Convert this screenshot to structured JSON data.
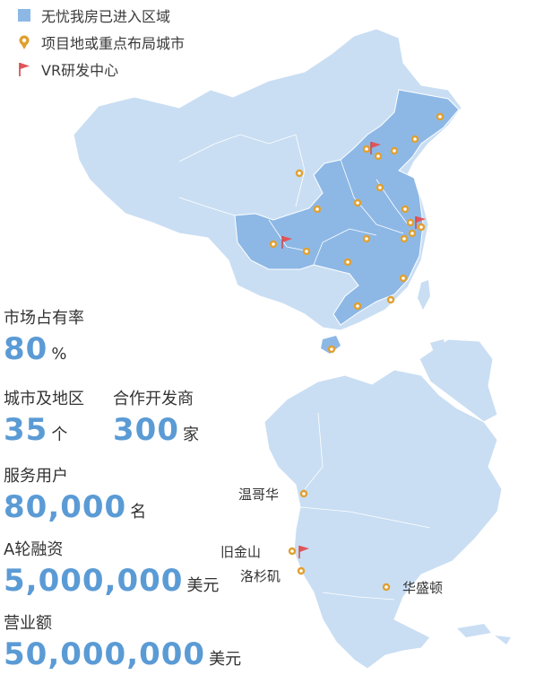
{
  "legend": {
    "covered": "无忧我房已进入区域",
    "project_city": "项目地或重点布局城市",
    "rd_center": "VR研发中心"
  },
  "stats": {
    "market_share": {
      "label": "市场占有率",
      "value": "80",
      "unit": "%"
    },
    "cities": {
      "label": "城市及地区",
      "value": "35",
      "unit": "个"
    },
    "developers": {
      "label": "合作开发商",
      "value": "300",
      "unit": "家"
    },
    "users": {
      "label": "服务用户",
      "value": "80,000",
      "unit": "名"
    },
    "funding": {
      "label": "A轮融资",
      "value": "5,000,000",
      "unit": "美元"
    },
    "revenue": {
      "label": "营业额",
      "value": "50,000,000",
      "unit": "美元"
    }
  },
  "us_cities": {
    "vancouver": "温哥华",
    "san_francisco": "旧金山",
    "los_angeles": "洛杉矶",
    "washington": "华盛顿"
  },
  "colors": {
    "covered_region": "#8db8e6",
    "base_region": "#c9def3",
    "pin": "#e0a030",
    "flag": "#e0555a",
    "stat_value": "#5b9bd5"
  }
}
